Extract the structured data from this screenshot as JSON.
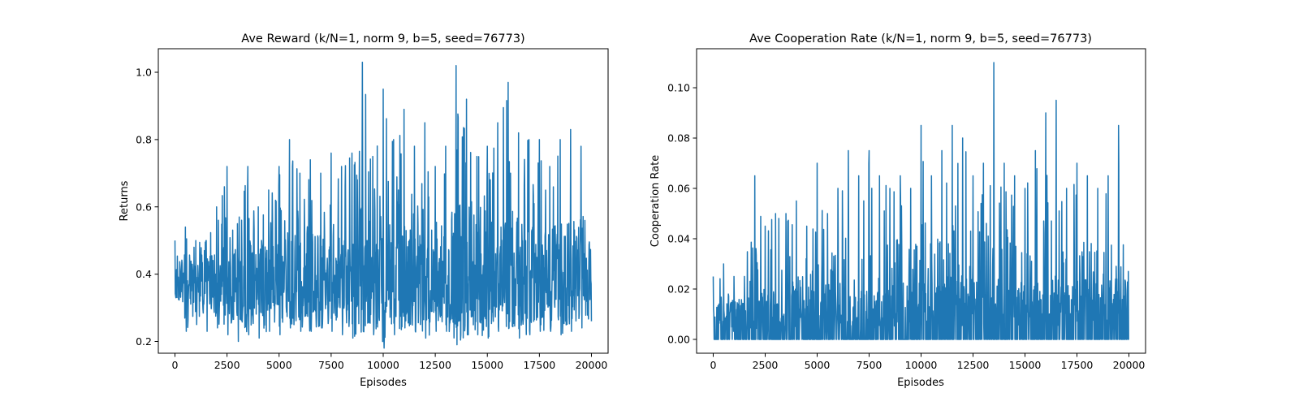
{
  "chart_data": [
    {
      "type": "line",
      "title": "Ave Reward (k/N=1, norm 9, b=5, seed=76773)",
      "xlabel": "Episodes",
      "ylabel": "Returns",
      "xlim": [
        -800,
        20800
      ],
      "ylim": [
        0.165,
        1.07
      ],
      "xticks": [
        0,
        2500,
        5000,
        7500,
        10000,
        12500,
        15000,
        17500,
        20000
      ],
      "xtick_labels": [
        "0",
        "2500",
        "5000",
        "7500",
        "10000",
        "12500",
        "15000",
        "17500",
        "20000"
      ],
      "yticks": [
        0.2,
        0.4,
        0.6,
        0.8,
        1.0
      ],
      "ytick_labels": [
        "0.2",
        "0.4",
        "0.6",
        "0.8",
        "1.0"
      ],
      "grid": false,
      "series": [
        {
          "color": "#1f77b4",
          "x": [
            0,
            500,
            1000,
            1500,
            2000,
            2500,
            3000,
            3500,
            4000,
            4500,
            5000,
            5500,
            6000,
            6500,
            7000,
            7500,
            8000,
            8500,
            9000,
            9500,
            10000,
            10500,
            11000,
            11500,
            12000,
            12500,
            13000,
            13500,
            14000,
            14500,
            15000,
            15500,
            16000,
            16500,
            17000,
            17500,
            18000,
            18500,
            19000,
            19500,
            20000
          ],
          "upper": [
            0.5,
            0.54,
            0.5,
            0.5,
            0.6,
            0.72,
            0.55,
            0.72,
            0.6,
            0.65,
            0.72,
            0.8,
            0.7,
            0.74,
            0.7,
            0.76,
            0.72,
            0.76,
            1.03,
            0.75,
            0.95,
            0.8,
            0.89,
            0.78,
            0.85,
            0.72,
            0.78,
            1.02,
            0.92,
            0.75,
            0.78,
            0.85,
            0.97,
            0.82,
            0.8,
            0.8,
            0.72,
            0.8,
            0.83,
            0.78,
            0.66
          ],
          "lower": [
            0.33,
            0.23,
            0.25,
            0.23,
            0.24,
            0.22,
            0.2,
            0.22,
            0.21,
            0.23,
            0.22,
            0.24,
            0.23,
            0.23,
            0.24,
            0.23,
            0.22,
            0.21,
            0.23,
            0.22,
            0.18,
            0.22,
            0.24,
            0.23,
            0.21,
            0.23,
            0.23,
            0.19,
            0.22,
            0.22,
            0.21,
            0.23,
            0.24,
            0.21,
            0.22,
            0.23,
            0.23,
            0.22,
            0.23,
            0.24,
            0.26
          ],
          "center": [
            0.38,
            0.38,
            0.37,
            0.37,
            0.37,
            0.37,
            0.37,
            0.37,
            0.38,
            0.38,
            0.38,
            0.39,
            0.39,
            0.39,
            0.39,
            0.39,
            0.39,
            0.39,
            0.4,
            0.4,
            0.4,
            0.4,
            0.4,
            0.4,
            0.4,
            0.4,
            0.4,
            0.4,
            0.4,
            0.4,
            0.4,
            0.4,
            0.4,
            0.4,
            0.4,
            0.4,
            0.4,
            0.4,
            0.4,
            0.4,
            0.4
          ]
        }
      ]
    },
    {
      "type": "line",
      "title": "Ave Cooperation Rate (k/N=1, norm 9, b=5, seed=76773)",
      "xlabel": "Episodes",
      "ylabel": "Cooperation Rate",
      "xlim": [
        -800,
        20800
      ],
      "ylim": [
        -0.0055,
        0.1155
      ],
      "xticks": [
        0,
        2500,
        5000,
        7500,
        10000,
        12500,
        15000,
        17500,
        20000
      ],
      "xtick_labels": [
        "0",
        "2500",
        "5000",
        "7500",
        "10000",
        "12500",
        "15000",
        "17500",
        "20000"
      ],
      "yticks": [
        0.0,
        0.02,
        0.04,
        0.06,
        0.08,
        0.1
      ],
      "ytick_labels": [
        "0.00",
        "0.02",
        "0.04",
        "0.06",
        "0.08",
        "0.10"
      ],
      "grid": false,
      "series": [
        {
          "color": "#1f77b4",
          "x": [
            0,
            500,
            1000,
            1500,
            2000,
            2500,
            3000,
            3500,
            4000,
            4500,
            5000,
            5500,
            6000,
            6500,
            7000,
            7500,
            8000,
            8500,
            9000,
            9500,
            10000,
            10500,
            11000,
            11500,
            12000,
            12500,
            13000,
            13500,
            14000,
            14500,
            15000,
            15500,
            16000,
            16500,
            17000,
            17500,
            18000,
            18500,
            19000,
            19500,
            20000
          ],
          "upper": [
            0.025,
            0.03,
            0.025,
            0.025,
            0.065,
            0.045,
            0.05,
            0.05,
            0.055,
            0.045,
            0.07,
            0.05,
            0.06,
            0.075,
            0.065,
            0.075,
            0.065,
            0.06,
            0.065,
            0.06,
            0.085,
            0.065,
            0.075,
            0.085,
            0.08,
            0.065,
            0.07,
            0.11,
            0.07,
            0.065,
            0.06,
            0.075,
            0.09,
            0.095,
            0.06,
            0.07,
            0.065,
            0.06,
            0.065,
            0.085,
            0.045
          ],
          "lower": [
            0,
            0,
            0,
            0,
            0,
            0,
            0,
            0,
            0,
            0,
            0,
            0,
            0,
            0,
            0,
            0,
            0,
            0,
            0,
            0,
            0,
            0,
            0,
            0,
            0,
            0,
            0,
            0,
            0,
            0,
            0,
            0,
            0,
            0,
            0,
            0,
            0,
            0,
            0,
            0,
            0
          ],
          "center": [
            0.01,
            0.01,
            0.01,
            0.01,
            0.012,
            0.012,
            0.012,
            0.012,
            0.013,
            0.013,
            0.014,
            0.014,
            0.014,
            0.014,
            0.014,
            0.014,
            0.014,
            0.014,
            0.014,
            0.014,
            0.015,
            0.015,
            0.015,
            0.015,
            0.015,
            0.015,
            0.015,
            0.015,
            0.015,
            0.015,
            0.015,
            0.015,
            0.015,
            0.015,
            0.015,
            0.015,
            0.015,
            0.015,
            0.015,
            0.015,
            0.015
          ]
        }
      ]
    }
  ]
}
